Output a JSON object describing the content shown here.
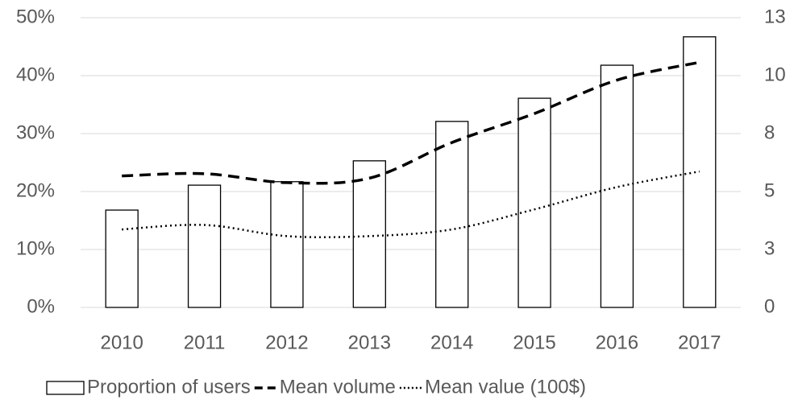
{
  "chart_data": {
    "type": "combo",
    "categories": [
      "2010",
      "2011",
      "2012",
      "2013",
      "2014",
      "2015",
      "2016",
      "2017"
    ],
    "series": [
      {
        "name": "Proportion of users",
        "type": "bar",
        "color": "#ffffff",
        "stroke": "#000000",
        "values": [
          16.8,
          21.1,
          21.7,
          25.3,
          32.1,
          36.1,
          41.8,
          46.7
        ]
      },
      {
        "name": "Mean volume",
        "type": "line",
        "axis": "y2",
        "dash": "dashed",
        "color": "#000000",
        "values": [
          5.9,
          6.0,
          5.6,
          5.8,
          7.4,
          8.7,
          10.2,
          11.0
        ]
      },
      {
        "name": "Mean value (100$)",
        "type": "line",
        "axis": "y2",
        "dash": "dotted",
        "color": "#000000",
        "values": [
          3.5,
          3.7,
          3.2,
          3.2,
          3.5,
          4.4,
          5.4,
          6.1
        ]
      }
    ],
    "ylim": [
      0,
      50
    ],
    "yticks": [
      {
        "value": 0,
        "label": "0%"
      },
      {
        "value": 10,
        "label": "10%"
      },
      {
        "value": 20,
        "label": "20%"
      },
      {
        "value": 30,
        "label": "30%"
      },
      {
        "value": 40,
        "label": "40%"
      },
      {
        "value": 50,
        "label": "50%"
      }
    ],
    "y2lim": [
      0,
      13
    ],
    "y2ticks": [
      0,
      {
        "value": 2.6,
        "label": "3"
      },
      {
        "value": 5.2,
        "label": "5"
      },
      {
        "value": 7.8,
        "label": "8"
      },
      {
        "value": 10.4,
        "label": "10"
      },
      13
    ],
    "grid": true,
    "legend": "bottom"
  }
}
